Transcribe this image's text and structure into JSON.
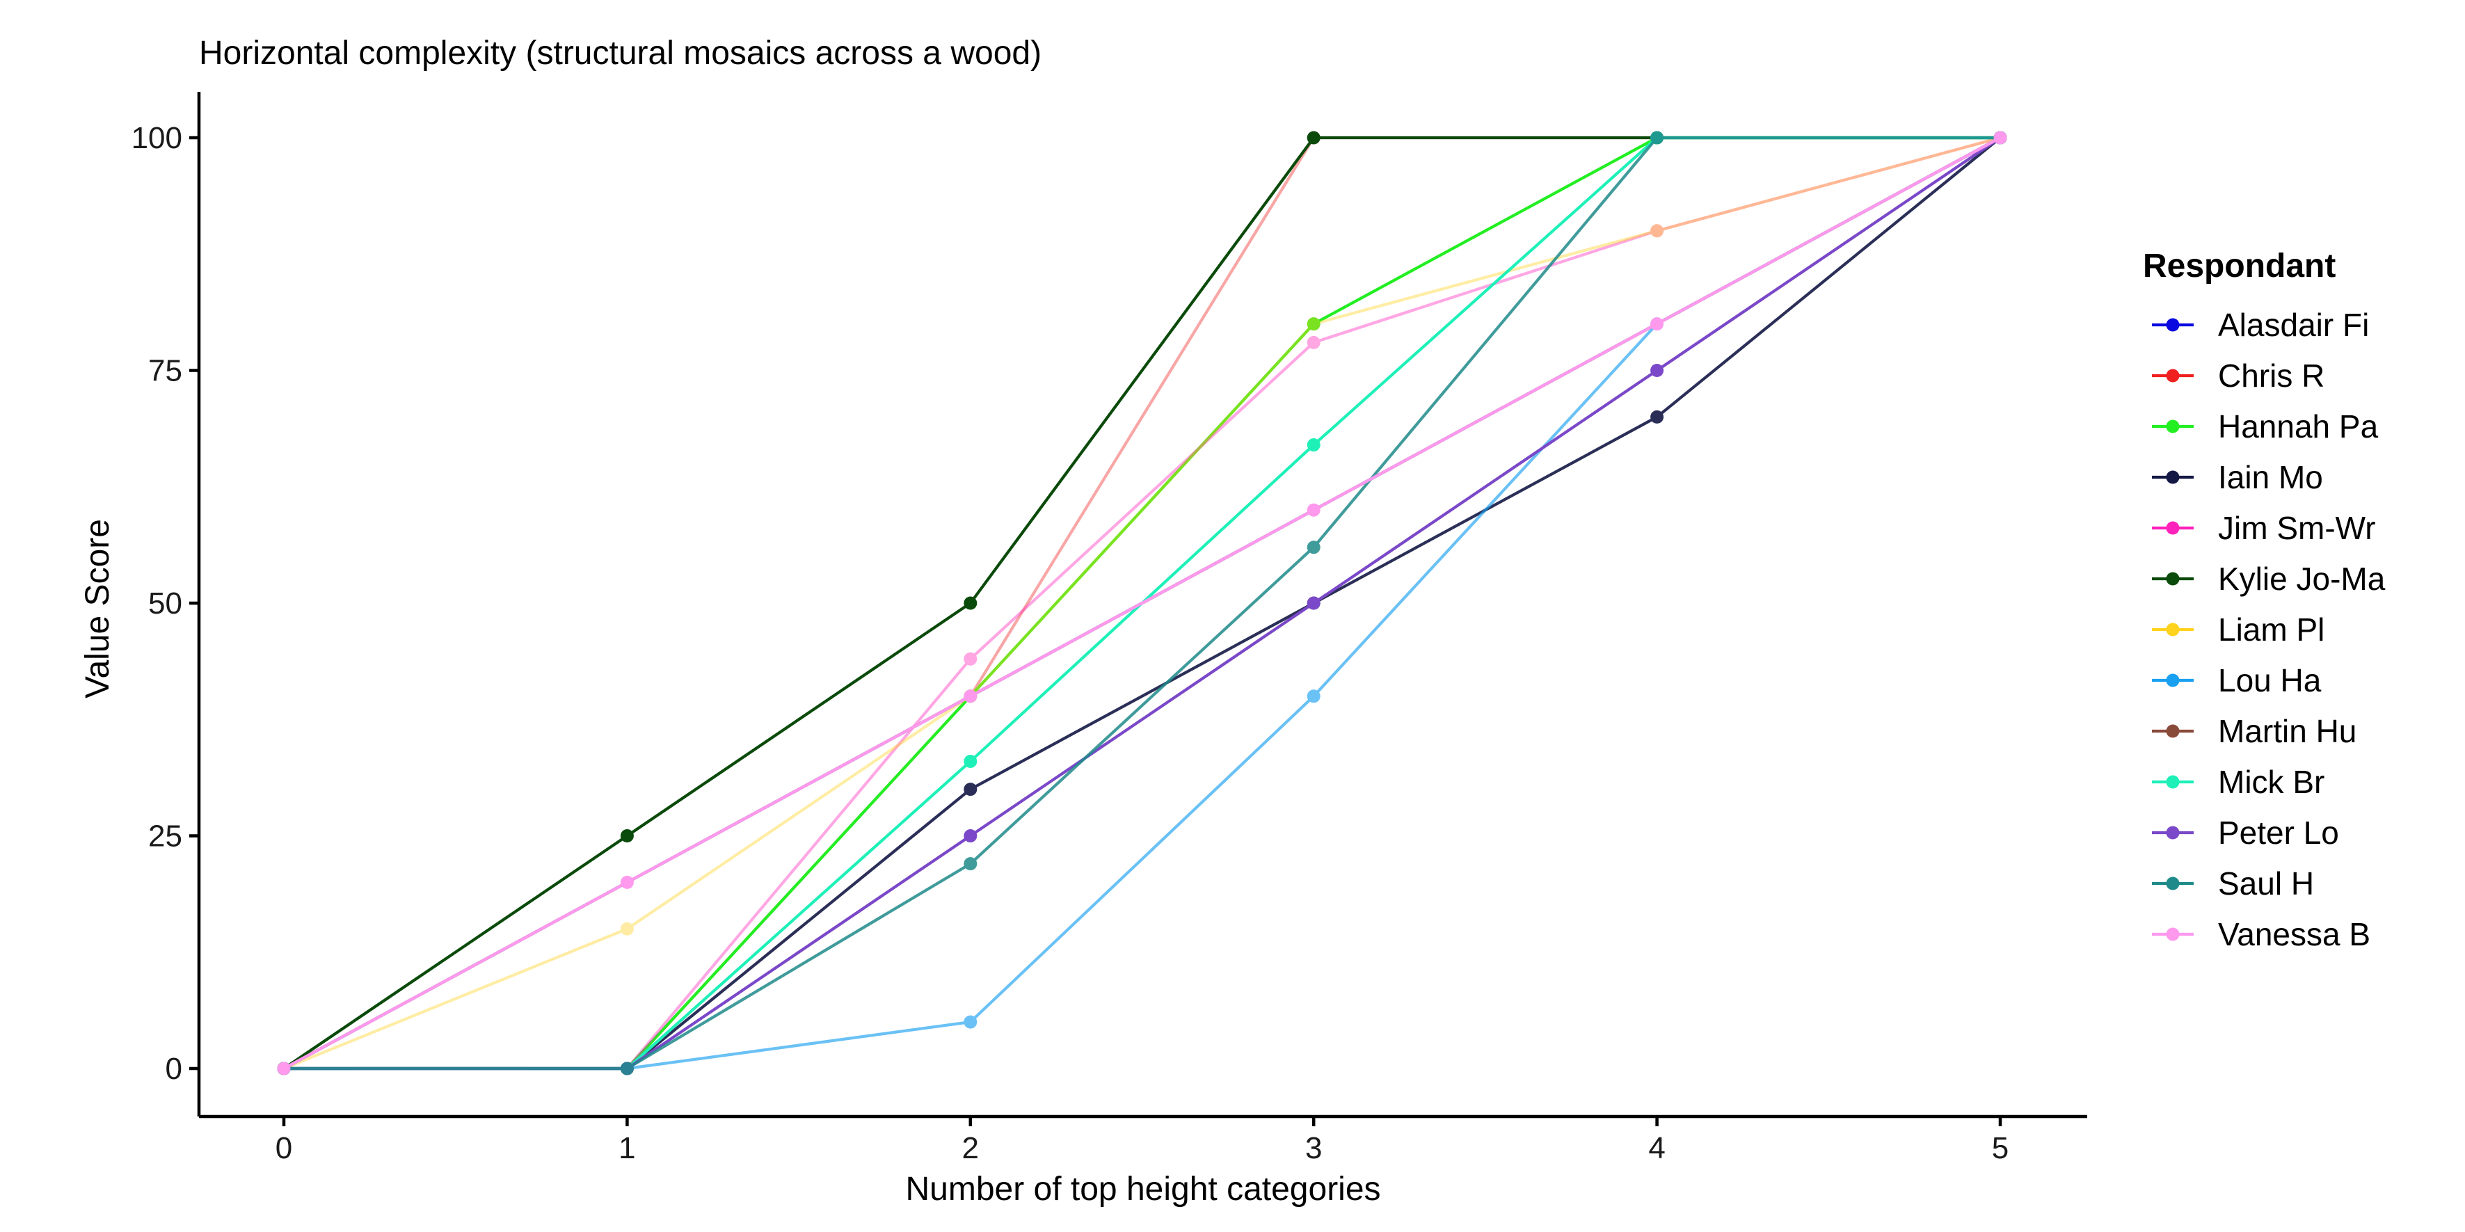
{
  "chart_data": {
    "type": "line",
    "title": "Horizontal complexity (structural mosaics across a wood)",
    "xlabel": "Number of top height categories",
    "ylabel": "Value Score",
    "xlim": [
      -0.25,
      5.25
    ],
    "ylim": [
      -5,
      105
    ],
    "x_ticks": [
      0,
      1,
      2,
      3,
      4,
      5
    ],
    "y_ticks": [
      0,
      25,
      50,
      75,
      100
    ],
    "grid": false,
    "legend_title": "Respondant",
    "legend_position": "right",
    "series": [
      {
        "name": "Alasdair Fi",
        "color": "#0a0ae0",
        "x": [
          0,
          5
        ],
        "y": [
          0,
          100
        ]
      },
      {
        "name": "Chris R",
        "color": "#f02020",
        "x": [
          0,
          1,
          2,
          3,
          4,
          5
        ],
        "y": [
          0,
          0,
          40,
          100,
          100,
          100
        ],
        "alpha": 0.4
      },
      {
        "name": "Hannah Pa",
        "color": "#22ee22",
        "x": [
          0,
          1,
          2,
          3,
          4,
          5
        ],
        "y": [
          0,
          0,
          40,
          80,
          100,
          100
        ]
      },
      {
        "name": "Iain Mo",
        "color": "#141845",
        "x": [
          0,
          1,
          2,
          3,
          4,
          5
        ],
        "y": [
          0,
          0,
          30,
          50,
          70,
          100
        ],
        "alpha": 0.9
      },
      {
        "name": "Jim Sm-Wr",
        "color": "#ff22bb",
        "x": [
          0,
          1,
          2,
          3,
          4,
          5
        ],
        "y": [
          0,
          0,
          44,
          78,
          90,
          100
        ],
        "alpha": 0.4
      },
      {
        "name": "Kylie Jo-Ma",
        "color": "#0a4a0a",
        "x": [
          0,
          1,
          2,
          3,
          4,
          5
        ],
        "y": [
          0,
          25,
          50,
          100,
          100,
          100
        ]
      },
      {
        "name": "Liam Pl",
        "color": "#ffd21e",
        "x": [
          0,
          1,
          2,
          3,
          4,
          5
        ],
        "y": [
          0,
          15,
          40,
          80,
          90,
          100
        ],
        "alpha": 0.4
      },
      {
        "name": "Lou Ha",
        "color": "#1aa0f0",
        "x": [
          0,
          1,
          2,
          3,
          4,
          5
        ],
        "y": [
          0,
          0,
          5,
          40,
          80,
          100
        ],
        "alpha": 0.65
      },
      {
        "name": "Martin Hu",
        "color": "#8a4a3a",
        "x": [
          0,
          5
        ],
        "y": [
          0,
          100
        ]
      },
      {
        "name": "Mick Br",
        "color": "#1ef0b8",
        "x": [
          0,
          1,
          2,
          3,
          4,
          5
        ],
        "y": [
          0,
          0,
          33,
          67,
          100,
          100
        ]
      },
      {
        "name": "Peter Lo",
        "color": "#7a48c8",
        "x": [
          0,
          1,
          2,
          3,
          4,
          5
        ],
        "y": [
          0,
          0,
          25,
          50,
          75,
          100
        ]
      },
      {
        "name": "Saul H",
        "color": "#1f8a8a",
        "x": [
          0,
          1,
          2,
          3,
          4,
          5
        ],
        "y": [
          0,
          0,
          22,
          56,
          100,
          100
        ],
        "alpha": 0.85
      },
      {
        "name": "Vanessa B",
        "color": "#ff99ee",
        "x": [
          0,
          1,
          2,
          3,
          4,
          5
        ],
        "y": [
          0,
          20,
          40,
          60,
          80,
          100
        ]
      }
    ]
  }
}
